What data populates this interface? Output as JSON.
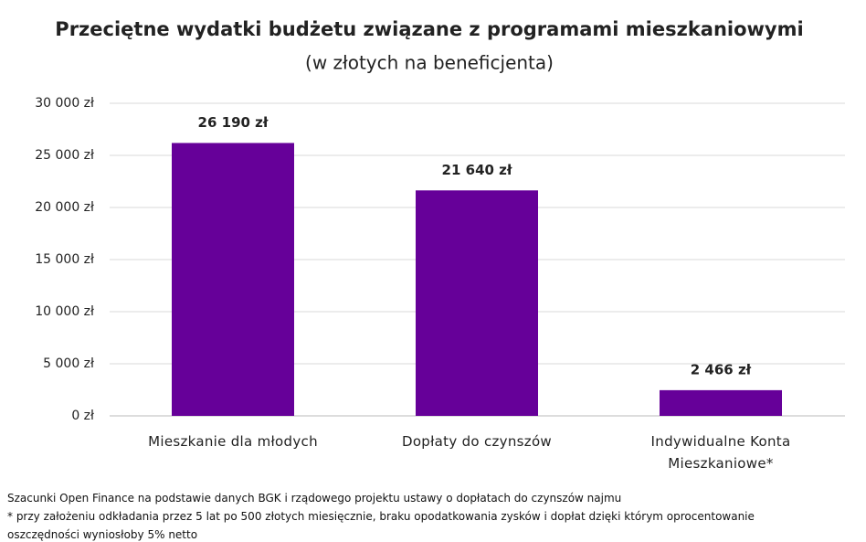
{
  "chart_data": {
    "type": "bar",
    "title": "Przeciętne wydatki budżetu związane z programami mieszkaniowymi",
    "subtitle": "(w złotych na beneficjenta)",
    "categories": [
      "Mieszkanie dla młodych",
      "Dopłaty do czynszów",
      "Indywidualne Konta Mieszkaniowe*"
    ],
    "values": [
      26190,
      21640,
      2466
    ],
    "value_labels": [
      "26 190 zł",
      "21 640 zł",
      "2 466 zł"
    ],
    "color": "#660099",
    "ylim": [
      0,
      30000
    ],
    "yticks": [
      {
        "value": 0,
        "label": "0 zł"
      },
      {
        "value": 5000,
        "label": "5 000 zł"
      },
      {
        "value": 10000,
        "label": "10 000 zł"
      },
      {
        "value": 15000,
        "label": "15 000 zł"
      },
      {
        "value": 20000,
        "label": "20 000 zł"
      },
      {
        "value": 25000,
        "label": "25 000 zł"
      },
      {
        "value": 30000,
        "label": "30 000 zł"
      }
    ],
    "grid": true,
    "source": "Szacunki Open Finance na podstawie danych BGK i rządowego projektu ustawy o dopłatach do czynszów najmu",
    "note": "* przy założeniu odkładania przez 5 lat po 500 złotych miesięcznie, braku opodatkowania zysków i dopłat dzięki którym oprocentowanie oszczędności wyniosłoby 5% netto"
  }
}
